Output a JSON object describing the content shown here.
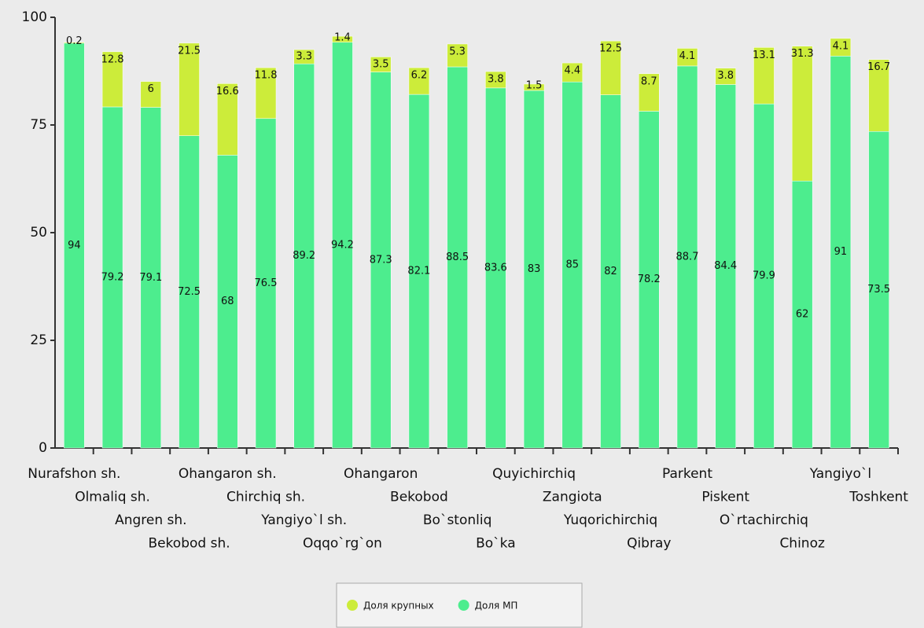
{
  "chart_data": {
    "type": "stacked_bar",
    "categories": [
      "Nurafshon sh.",
      "Olmaliq sh.",
      "Angren sh.",
      "Bekobod sh.",
      "Ohangaron sh.",
      "Chirchiq sh.",
      "Yangiyo`l sh.",
      "Oqqo`rg`on",
      "Ohangaron",
      "Bekobod",
      "Bo`stonliq",
      "Bo`ka",
      "Quyichirchiq",
      "Zangiota",
      "Yuqorichirchiq",
      "Qibray",
      "Parkent",
      "Piskent",
      "O`rtachirchiq",
      "Chinoz",
      "Yangiyo`l",
      "Toshkent"
    ],
    "series": [
      {
        "name": "Доля МП",
        "color": "#4ded8e",
        "values": [
          94,
          79.2,
          79.1,
          72.5,
          68,
          76.5,
          89.2,
          94.2,
          87.3,
          82.1,
          88.5,
          83.6,
          83,
          85,
          82,
          78.2,
          88.7,
          84.4,
          79.9,
          62,
          91,
          73.5
        ]
      },
      {
        "name": "Доля крупных",
        "color": "#ccec3a",
        "values": [
          0.2,
          12.8,
          6,
          21.5,
          16.6,
          11.8,
          3.3,
          1.4,
          3.5,
          6.2,
          5.3,
          3.8,
          1.5,
          4.4,
          12.5,
          8.7,
          4.1,
          3.8,
          13.1,
          31.3,
          4.1,
          16.7
        ]
      }
    ],
    "ylim": [
      0,
      100
    ],
    "yticks": [
      0,
      25,
      50,
      75,
      100
    ],
    "legend": "bottom"
  }
}
